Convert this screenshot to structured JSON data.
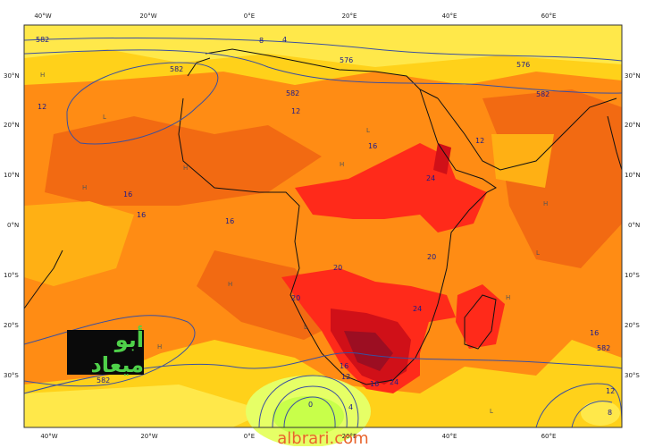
{
  "map": {
    "lon_labels": [
      "40°W",
      "20°W",
      "0°E",
      "20°E",
      "40°E",
      "60°E"
    ],
    "lat_labels": [
      "30°N",
      "20°N",
      "10°N",
      "0°N",
      "10°S",
      "20°S",
      "30°S"
    ],
    "contour_labels_height": [
      "582",
      "582",
      "582",
      "582",
      "576",
      "576",
      "582",
      "582"
    ],
    "contour_labels_field": [
      "12",
      "12",
      "12",
      "16",
      "16",
      "16",
      "16",
      "20",
      "20",
      "24",
      "24",
      "20",
      "16",
      "12",
      "8",
      "4",
      "0",
      "4",
      "8",
      "12",
      "16",
      "24",
      "16"
    ],
    "pressure_marks": [
      "H",
      "L"
    ],
    "colors": {
      "ocean_base": "#ffd11a",
      "light": "#ffe84a",
      "orange": "#ff8c14",
      "deep_orange": "#f26a12",
      "red": "#ff2a1a",
      "dark_red": "#d01018",
      "maroon": "#9c0e22",
      "green": "#e6ff66",
      "contour": "#3a4fa0",
      "coast": "#111111"
    }
  },
  "logo": {
    "text": "أبو ميعاد"
  },
  "watermark": {
    "text": "albrari.com"
  }
}
